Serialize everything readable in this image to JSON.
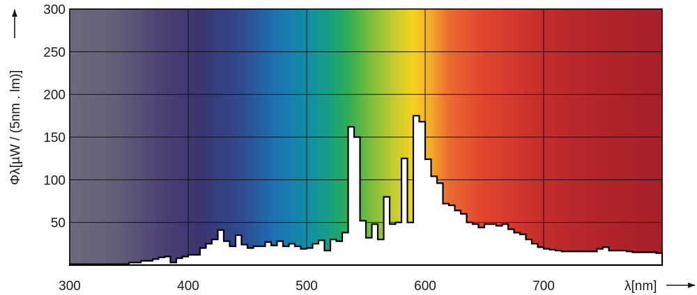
{
  "chart_data": {
    "type": "area",
    "xlabel": "λ[nm]",
    "ylabel": "Φλ[µW / (5nm . lm)]",
    "xlim": [
      300,
      800
    ],
    "ylim": [
      0,
      300
    ],
    "x_ticks": [
      300,
      400,
      500,
      600,
      700
    ],
    "y_ticks": [
      50,
      100,
      150,
      200,
      250,
      300
    ],
    "grid": true,
    "bin_width_nm": 5,
    "background": "visible spectrum gradient (violet to red)",
    "series": [
      {
        "step": "post",
        "x": [
          300,
          305,
          310,
          315,
          320,
          325,
          330,
          335,
          340,
          345,
          350,
          355,
          360,
          365,
          370,
          375,
          380,
          385,
          390,
          395,
          400,
          405,
          410,
          415,
          420,
          425,
          430,
          435,
          440,
          445,
          450,
          455,
          460,
          465,
          470,
          475,
          480,
          485,
          490,
          495,
          500,
          505,
          510,
          515,
          520,
          525,
          530,
          535,
          540,
          545,
          550,
          555,
          560,
          565,
          570,
          575,
          580,
          585,
          590,
          595,
          600,
          605,
          610,
          615,
          620,
          625,
          630,
          635,
          640,
          645,
          650,
          655,
          660,
          665,
          670,
          675,
          680,
          685,
          690,
          695,
          700,
          705,
          710,
          715,
          720,
          725,
          730,
          735,
          740,
          745,
          750,
          755,
          760,
          765,
          770,
          775,
          780,
          785,
          790,
          795
        ],
        "y": [
          1,
          1,
          1,
          1,
          1,
          1,
          1,
          1,
          1,
          1,
          3,
          3,
          5,
          5,
          7,
          9,
          10,
          3,
          8,
          10,
          12,
          12,
          20,
          25,
          30,
          41,
          28,
          22,
          35,
          24,
          20,
          22,
          22,
          27,
          23,
          28,
          22,
          25,
          22,
          19,
          20,
          25,
          29,
          17,
          30,
          28,
          38,
          162,
          150,
          52,
          32,
          48,
          30,
          80,
          48,
          50,
          125,
          50,
          175,
          168,
          124,
          104,
          96,
          72,
          70,
          64,
          60,
          50,
          48,
          44,
          48,
          48,
          46,
          48,
          42,
          38,
          36,
          30,
          25,
          21,
          19,
          18,
          17,
          16,
          16,
          16,
          16,
          16,
          16,
          19,
          21,
          17,
          17,
          17,
          16,
          15,
          15,
          15,
          15,
          14
        ]
      }
    ]
  }
}
